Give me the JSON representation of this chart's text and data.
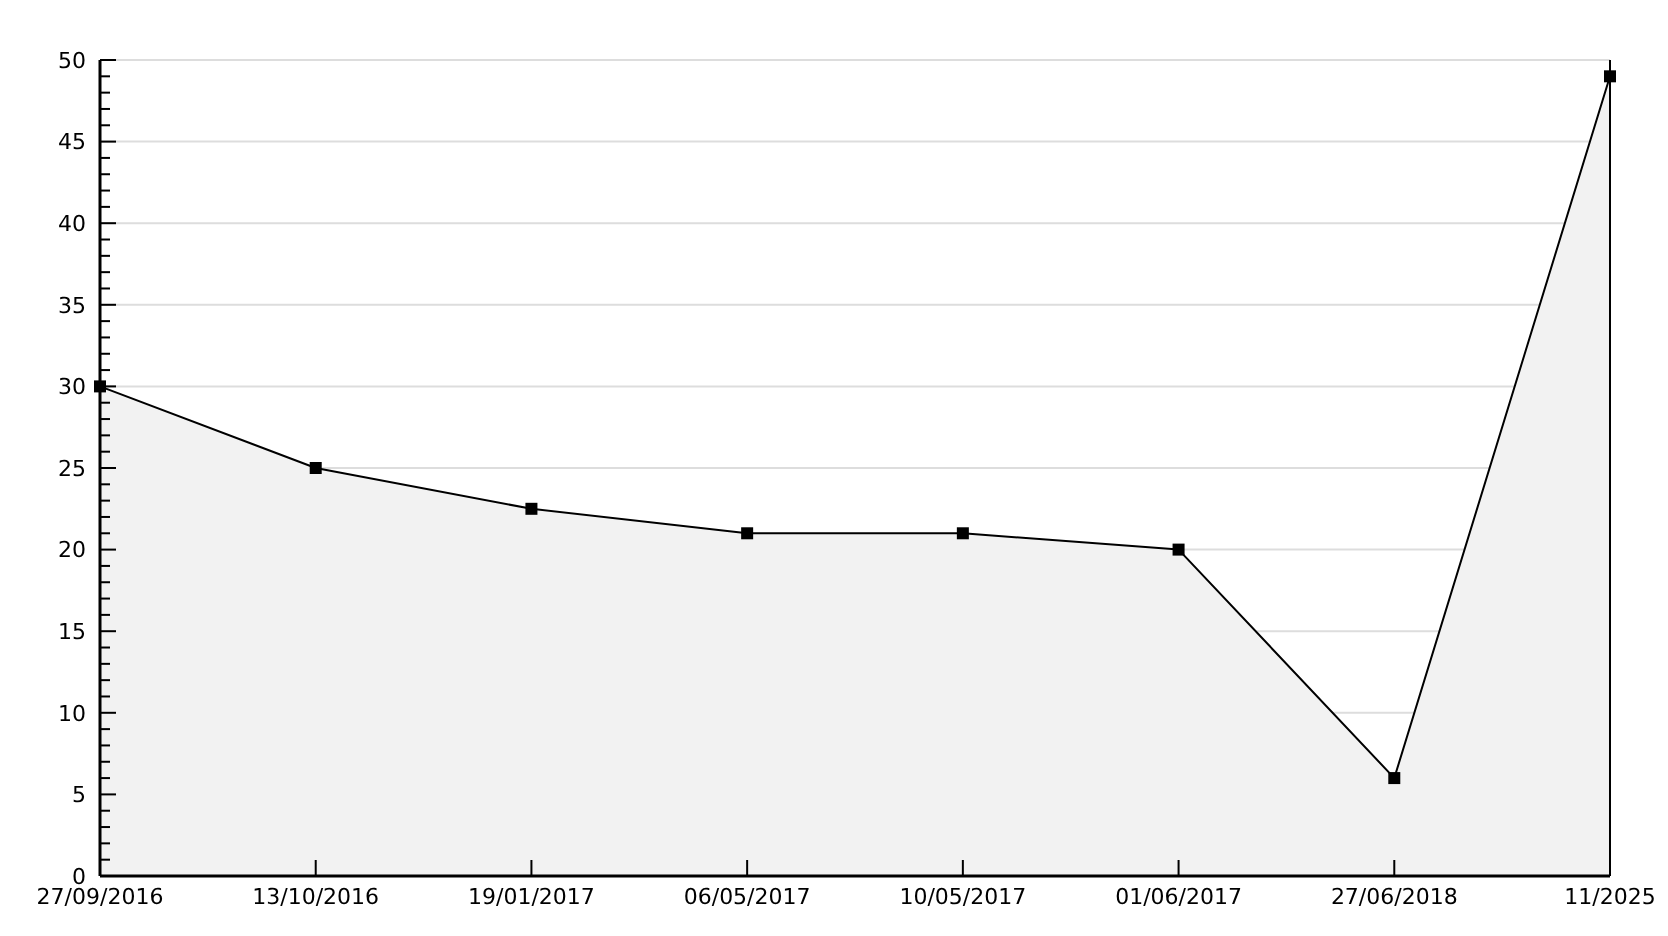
{
  "chart_data": {
    "type": "area",
    "categories": [
      "27/09/2016",
      "13/10/2016",
      "19/01/2017",
      "06/05/2017",
      "10/05/2017",
      "01/06/2017",
      "27/06/2018",
      "11/2025"
    ],
    "series": [
      {
        "color": "#000000",
        "values": [
          30,
          25,
          22.5,
          21,
          21,
          20,
          6,
          49
        ]
      }
    ],
    "ylim": [
      0,
      50
    ],
    "yticks": [
      0,
      {
        "value": 1,
        "label": null
      },
      {
        "value": 2,
        "label": null
      },
      {
        "value": 3,
        "label": null
      },
      {
        "value": 4,
        "label": null
      },
      5,
      {
        "value": 6,
        "label": null
      },
      {
        "value": 7,
        "label": null
      },
      {
        "value": 8,
        "label": null
      },
      {
        "value": 9,
        "label": null
      },
      10,
      {
        "value": 11,
        "label": null
      },
      {
        "value": 12,
        "label": null
      },
      {
        "value": 13,
        "label": null
      },
      {
        "value": 14,
        "label": null
      },
      15,
      {
        "value": 16,
        "label": null
      },
      {
        "value": 17,
        "label": null
      },
      {
        "value": 18,
        "label": null
      },
      {
        "value": 19,
        "label": null
      },
      20,
      {
        "value": 21,
        "label": null
      },
      {
        "value": 22,
        "label": null
      },
      {
        "value": 23,
        "label": null
      },
      {
        "value": 24,
        "label": null
      },
      25,
      {
        "value": 26,
        "label": null
      },
      {
        "value": 27,
        "label": null
      },
      {
        "value": 28,
        "label": null
      },
      {
        "value": 29,
        "label": null
      },
      30,
      {
        "value": 31,
        "label": null
      },
      {
        "value": 32,
        "label": null
      },
      {
        "value": 33,
        "label": null
      },
      {
        "value": 34,
        "label": null
      },
      35,
      {
        "value": 36,
        "label": null
      },
      {
        "value": 37,
        "label": null
      },
      {
        "value": 38,
        "label": null
      },
      {
        "value": 39,
        "label": null
      },
      40,
      {
        "value": 41,
        "label": null
      },
      {
        "value": 42,
        "label": null
      },
      {
        "value": 43,
        "label": null
      },
      {
        "value": 44,
        "label": null
      },
      45,
      {
        "value": 46,
        "label": null
      },
      {
        "value": 47,
        "label": null
      },
      {
        "value": 48,
        "label": null
      },
      {
        "value": 49,
        "label": null
      },
      50
    ],
    "grid": "y",
    "marker": "square",
    "line_style": "solid"
  }
}
